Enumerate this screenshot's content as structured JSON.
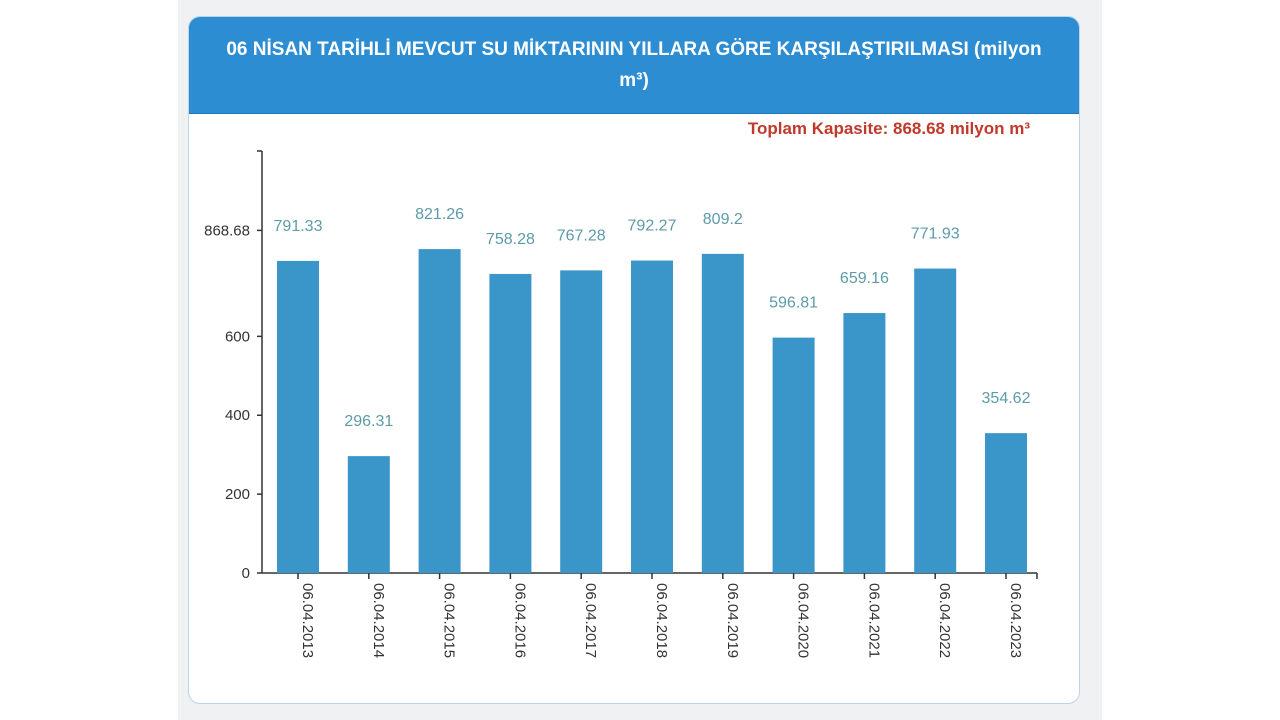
{
  "header": {
    "title": "06 NİSAN TARİHLİ MEVCUT SU MİKTARININ YILLARA GÖRE KARŞILAŞTIRILMASI (milyon m³)"
  },
  "capacity": {
    "label": "Toplam Kapasite: 868.68 milyon m³"
  },
  "colors": {
    "header": "#2d8dd2",
    "bar": "#3a96c9",
    "value_label": "#5e9ba8",
    "capacity_label": "#c0392b"
  },
  "chart_data": {
    "type": "bar",
    "title": "06 NİSAN TARİHLİ MEVCUT SU MİKTARININ YILLARA GÖRE KARŞILAŞTIRILMASI (milyon m³)",
    "xlabel": "",
    "ylabel": "",
    "categories": [
      "06.04.2013",
      "06.04.2014",
      "06.04.2015",
      "06.04.2016",
      "06.04.2017",
      "06.04.2018",
      "06.04.2019",
      "06.04.2020",
      "06.04.2021",
      "06.04.2022",
      "06.04.2023"
    ],
    "values": [
      791.33,
      296.31,
      821.26,
      758.28,
      767.28,
      792.27,
      809.2,
      596.81,
      659.16,
      771.93,
      354.62
    ],
    "value_labels": [
      "791.33",
      "296.31",
      "821.26",
      "758.28",
      "767.28",
      "792.27",
      "809.2",
      "596.81",
      "659.16",
      "771.93",
      "354.62"
    ],
    "yticks": [
      0,
      200,
      400,
      600,
      868.68
    ],
    "ytick_labels": [
      "0",
      "200",
      "400",
      "600",
      "868.68"
    ],
    "ylim": [
      0,
      1070
    ],
    "grid": false,
    "legend": "none"
  }
}
